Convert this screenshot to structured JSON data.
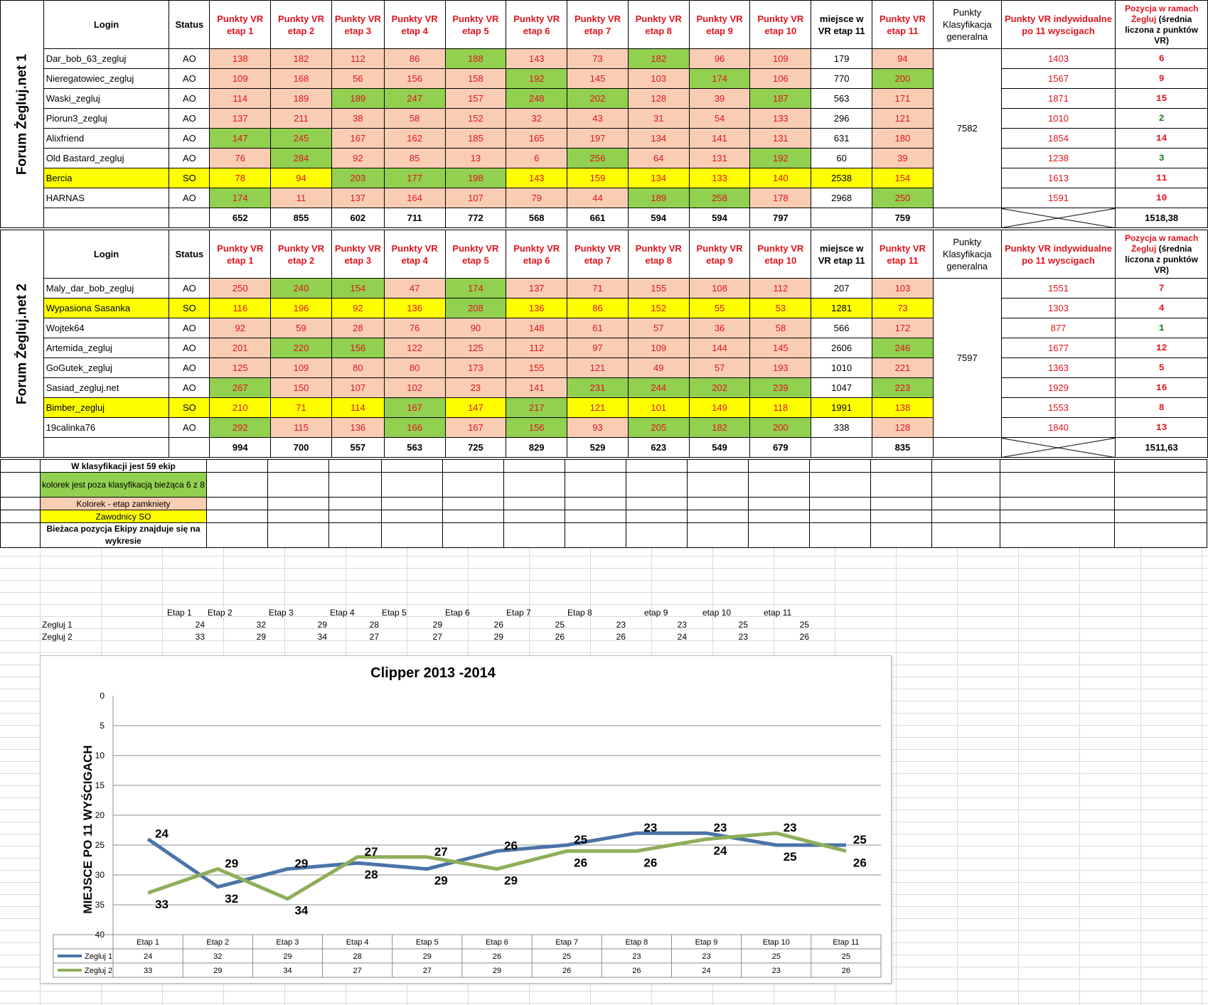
{
  "headers": {
    "login": "Login",
    "status": "Status",
    "stages": [
      "Punkty VR etap 1",
      "Punkty VR etap 2",
      "Punkty VR etap 3",
      "Punkty VR etap 4",
      "Punkty VR etap 5",
      "Punkty VR etap 6",
      "Punkty VR etap 7",
      "Punkty VR etap 8",
      "Punkty VR etap 9",
      "Punkty VR etap 10"
    ],
    "place_etap11": "miejsce w VR etap 11",
    "stage11": "Punkty VR etap 11",
    "general": "Punkty Klasyfikacja generalna",
    "individual": "Punkty VR indywidualne po 11 wyscigach",
    "position_pre": "Pozycja w ramach Żegluj ",
    "position_post": "(średnia liczona z punktów VR)"
  },
  "teams": [
    {
      "name": "Forum Żegluj.net 1",
      "general": "7582",
      "avg": "1518,38",
      "totals": [
        "652",
        "855",
        "602",
        "711",
        "772",
        "568",
        "661",
        "594",
        "594",
        "797",
        "",
        "759"
      ],
      "rows": [
        {
          "login": "Dar_bob_63_zegluj",
          "status": "AO",
          "status_bg": "",
          "vals": [
            "138",
            "182",
            "112",
            "86",
            "188",
            "143",
            "73",
            "182",
            "96",
            "109"
          ],
          "bg": [
            "s",
            "s",
            "s",
            "s",
            "g",
            "s",
            "s",
            "g",
            "s",
            "s"
          ],
          "place": "179",
          "p11": "94",
          "p11bg": "s",
          "indiv": "1403",
          "rank": "6",
          "rankc": "r"
        },
        {
          "login": "Nieregatowiec_zegluj",
          "status": "AO",
          "status_bg": "",
          "vals": [
            "109",
            "168",
            "56",
            "156",
            "158",
            "192",
            "145",
            "103",
            "174",
            "106"
          ],
          "bg": [
            "s",
            "s",
            "s",
            "s",
            "s",
            "g",
            "s",
            "s",
            "g",
            "s"
          ],
          "place": "770",
          "p11": "200",
          "p11bg": "g",
          "indiv": "1567",
          "rank": "9",
          "rankc": "r"
        },
        {
          "login": "Waski_zegluj",
          "status": "AO",
          "status_bg": "",
          "vals": [
            "114",
            "189",
            "189",
            "247",
            "157",
            "248",
            "202",
            "128",
            "39",
            "187"
          ],
          "bg": [
            "s",
            "s",
            "g",
            "g",
            "s",
            "g",
            "g",
            "s",
            "s",
            "g"
          ],
          "place": "563",
          "p11": "171",
          "p11bg": "s",
          "indiv": "1871",
          "rank": "15",
          "rankc": "r"
        },
        {
          "login": "Piorun3_zegluj",
          "status": "AO",
          "status_bg": "",
          "vals": [
            "137",
            "211",
            "38",
            "58",
            "152",
            "32",
            "43",
            "31",
            "54",
            "133"
          ],
          "bg": [
            "s",
            "s",
            "s",
            "s",
            "s",
            "s",
            "s",
            "s",
            "s",
            "s"
          ],
          "place": "296",
          "p11": "121",
          "p11bg": "s",
          "indiv": "1010",
          "rank": "2",
          "rankc": "g"
        },
        {
          "login": "Alixfriend",
          "status": "AO",
          "status_bg": "",
          "vals": [
            "147",
            "245",
            "167",
            "162",
            "185",
            "165",
            "197",
            "134",
            "141",
            "131"
          ],
          "bg": [
            "g",
            "g",
            "s",
            "s",
            "s",
            "s",
            "s",
            "s",
            "s",
            "s"
          ],
          "place": "631",
          "p11": "180",
          "p11bg": "s",
          "indiv": "1854",
          "rank": "14",
          "rankc": "r"
        },
        {
          "login": "Old Bastard_zegluj",
          "status": "AO",
          "status_bg": "",
          "vals": [
            "76",
            "284",
            "92",
            "85",
            "13",
            "6",
            "256",
            "64",
            "131",
            "192"
          ],
          "bg": [
            "s",
            "g",
            "s",
            "s",
            "s",
            "s",
            "g",
            "s",
            "s",
            "g"
          ],
          "place": "60",
          "p11": "39",
          "p11bg": "s",
          "indiv": "1238",
          "rank": "3",
          "rankc": "g"
        },
        {
          "login": "Bercia",
          "status": "SO",
          "status_bg": "y",
          "vals": [
            "78",
            "94",
            "203",
            "177",
            "198",
            "143",
            "159",
            "134",
            "133",
            "140"
          ],
          "bg": [
            "y",
            "y",
            "g",
            "g",
            "g",
            "y",
            "y",
            "y",
            "y",
            "y"
          ],
          "place": "2538",
          "p11": "154",
          "p11bg": "y",
          "indiv": "1613",
          "rank": "11",
          "rankc": "r",
          "rowy": true
        },
        {
          "login": "HARNAS",
          "status": "AO",
          "status_bg": "",
          "vals": [
            "174",
            "11",
            "137",
            "164",
            "107",
            "79",
            "44",
            "189",
            "258",
            "178"
          ],
          "bg": [
            "g",
            "s",
            "s",
            "s",
            "s",
            "s",
            "s",
            "g",
            "g",
            "s"
          ],
          "place": "2968",
          "p11": "250",
          "p11bg": "g",
          "indiv": "1591",
          "rank": "10",
          "rankc": "r"
        }
      ]
    },
    {
      "name": "Forum Żegluj.net 2",
      "general": "7597",
      "avg": "1511,63",
      "totals": [
        "994",
        "700",
        "557",
        "563",
        "725",
        "829",
        "529",
        "623",
        "549",
        "679",
        "",
        "835"
      ],
      "rows": [
        {
          "login": "Maly_dar_bob_zegluj",
          "status": "AO",
          "status_bg": "",
          "vals": [
            "250",
            "240",
            "154",
            "47",
            "174",
            "137",
            "71",
            "155",
            "108",
            "112"
          ],
          "bg": [
            "s",
            "g",
            "g",
            "s",
            "g",
            "s",
            "s",
            "s",
            "s",
            "s"
          ],
          "place": "207",
          "p11": "103",
          "p11bg": "s",
          "indiv": "1551",
          "rank": "7",
          "rankc": "r"
        },
        {
          "login": "Wypasiona Sasanka",
          "status": "SO",
          "status_bg": "y",
          "vals": [
            "116",
            "196",
            "92",
            "136",
            "208",
            "136",
            "86",
            "152",
            "55",
            "53"
          ],
          "bg": [
            "y",
            "y",
            "y",
            "y",
            "g",
            "y",
            "y",
            "y",
            "y",
            "y"
          ],
          "place": "1281",
          "p11": "73",
          "p11bg": "y",
          "indiv": "1303",
          "rank": "4",
          "rankc": "r",
          "rowy": true
        },
        {
          "login": "Wojtek64",
          "status": "AO",
          "status_bg": "",
          "vals": [
            "92",
            "59",
            "28",
            "76",
            "90",
            "148",
            "61",
            "57",
            "36",
            "58"
          ],
          "bg": [
            "s",
            "s",
            "s",
            "s",
            "s",
            "s",
            "s",
            "s",
            "s",
            "s"
          ],
          "place": "566",
          "p11": "172",
          "p11bg": "s",
          "indiv": "877",
          "rank": "1",
          "rankc": "g"
        },
        {
          "login": "Artemida_zegluj",
          "status": "AO",
          "status_bg": "",
          "vals": [
            "201",
            "220",
            "156",
            "122",
            "125",
            "112",
            "97",
            "109",
            "144",
            "145"
          ],
          "bg": [
            "s",
            "g",
            "g",
            "s",
            "s",
            "s",
            "s",
            "s",
            "s",
            "s"
          ],
          "place": "2606",
          "p11": "246",
          "p11bg": "g",
          "indiv": "1677",
          "rank": "12",
          "rankc": "r"
        },
        {
          "login": "GoGutek_zegluj",
          "status": "AO",
          "status_bg": "",
          "vals": [
            "125",
            "109",
            "80",
            "80",
            "173",
            "155",
            "121",
            "49",
            "57",
            "193"
          ],
          "bg": [
            "s",
            "s",
            "s",
            "s",
            "s",
            "s",
            "s",
            "s",
            "s",
            "s"
          ],
          "place": "1010",
          "p11": "221",
          "p11bg": "s",
          "indiv": "1363",
          "rank": "5",
          "rankc": "r"
        },
        {
          "login": "Sasiad_zegluj.net",
          "status": "AO",
          "status_bg": "",
          "vals": [
            "267",
            "150",
            "107",
            "102",
            "23",
            "141",
            "231",
            "244",
            "202",
            "239"
          ],
          "bg": [
            "g",
            "s",
            "s",
            "s",
            "s",
            "s",
            "g",
            "g",
            "g",
            "g"
          ],
          "place": "1047",
          "p11": "223",
          "p11bg": "g",
          "indiv": "1929",
          "rank": "16",
          "rankc": "r"
        },
        {
          "login": "Bimber_zegluj",
          "status": "SO",
          "status_bg": "y",
          "vals": [
            "210",
            "71",
            "114",
            "167",
            "147",
            "217",
            "121",
            "101",
            "149",
            "118"
          ],
          "bg": [
            "y",
            "y",
            "y",
            "g",
            "y",
            "g",
            "y",
            "y",
            "y",
            "y"
          ],
          "place": "1991",
          "p11": "138",
          "p11bg": "y",
          "indiv": "1553",
          "rank": "8",
          "rankc": "r",
          "rowy": true
        },
        {
          "login": "19calinka76",
          "status": "AO",
          "status_bg": "",
          "vals": [
            "292",
            "115",
            "136",
            "166",
            "167",
            "156",
            "93",
            "205",
            "182",
            "200"
          ],
          "bg": [
            "g",
            "s",
            "s",
            "g",
            "s",
            "g",
            "s",
            "g",
            "g",
            "g"
          ],
          "place": "338",
          "p11": "128",
          "p11bg": "s",
          "indiv": "1840",
          "rank": "13",
          "rankc": "r"
        }
      ]
    }
  ],
  "legend": {
    "count": "W klasyfikacji jest 59 ekip",
    "green": "kolorek jest  poza klasyfikacją bieżąca 6 z 8",
    "salmon": "Kolorek - etap zamkniety",
    "yellow": "Zawodnicy SO",
    "current": "Bieżaca pozycja Ekipy znajduje się na wykresie"
  },
  "mini_table": {
    "headers": [
      "Etap 1",
      "Etap 2",
      "Etap 3",
      "Etap 4",
      "Etap 5",
      "Etap 6",
      "Etap 7",
      "Etap 8",
      "etap 9",
      "etap 10",
      "etap 11"
    ],
    "rows": [
      {
        "label": "Zegluj 1",
        "vals": [
          "24",
          "32",
          "29",
          "28",
          "29",
          "26",
          "25",
          "23",
          "23",
          "25",
          "25"
        ]
      },
      {
        "label": "Zegluj 2",
        "vals": [
          "33",
          "29",
          "34",
          "27",
          "27",
          "29",
          "26",
          "26",
          "24",
          "23",
          "26"
        ]
      }
    ]
  },
  "chart_data": {
    "type": "line",
    "title": "Clipper 2013 -2014",
    "ylabel": "MIEJSCE PO 11 WYŚCIGACH",
    "xlabel": "",
    "categories": [
      "Etap 1",
      "Etap 2",
      "Etap 3",
      "Etap 4",
      "Etap 5",
      "Etap 6",
      "Etap 7",
      "Etap 8",
      "Etap 9",
      "Etap 10",
      "Etap 11"
    ],
    "ylim": [
      0,
      40
    ],
    "y_reversed": true,
    "yticks": [
      0,
      5,
      10,
      15,
      20,
      25,
      30,
      35,
      40
    ],
    "grid": true,
    "legend": "data-table",
    "series": [
      {
        "name": "Zegluj 1",
        "color": "#4a74a8",
        "values": [
          24,
          32,
          29,
          28,
          29,
          26,
          25,
          23,
          23,
          25,
          25
        ]
      },
      {
        "name": "Zegluj 2",
        "color": "#8fae5a",
        "values": [
          33,
          29,
          34,
          27,
          27,
          29,
          26,
          26,
          24,
          23,
          26
        ]
      }
    ]
  }
}
